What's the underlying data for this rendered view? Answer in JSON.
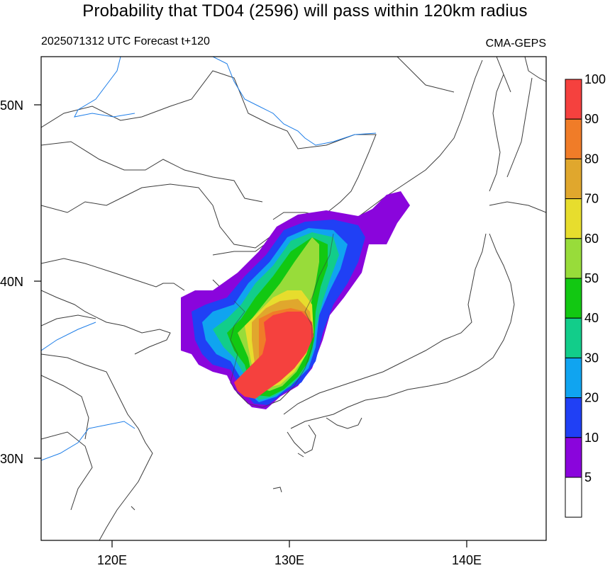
{
  "header": {
    "title": "Probability that TD04 (2596) will pass within 120km radius",
    "run_info": "2025071312 UTC Forecast t+120",
    "model": "CMA-GEPS"
  },
  "axes": {
    "lat_ticks": [
      "50N",
      "40N",
      "30N"
    ],
    "lon_ticks": [
      "120E",
      "130E",
      "140E"
    ]
  },
  "colorbar": {
    "labels": [
      "100",
      "90",
      "80",
      "70",
      "60",
      "50",
      "40",
      "30",
      "20",
      "10",
      "5"
    ],
    "colors": [
      "#f5413e",
      "#f07c28",
      "#e0a72d",
      "#e7dd2d",
      "#98dc3a",
      "#12c812",
      "#12cd8a",
      "#10a4f0",
      "#2040f5",
      "#8a05dc",
      "#ffffff"
    ]
  },
  "map_colors": {
    "coastline": "#3c3c3c",
    "river": "#1e7ee8"
  }
}
